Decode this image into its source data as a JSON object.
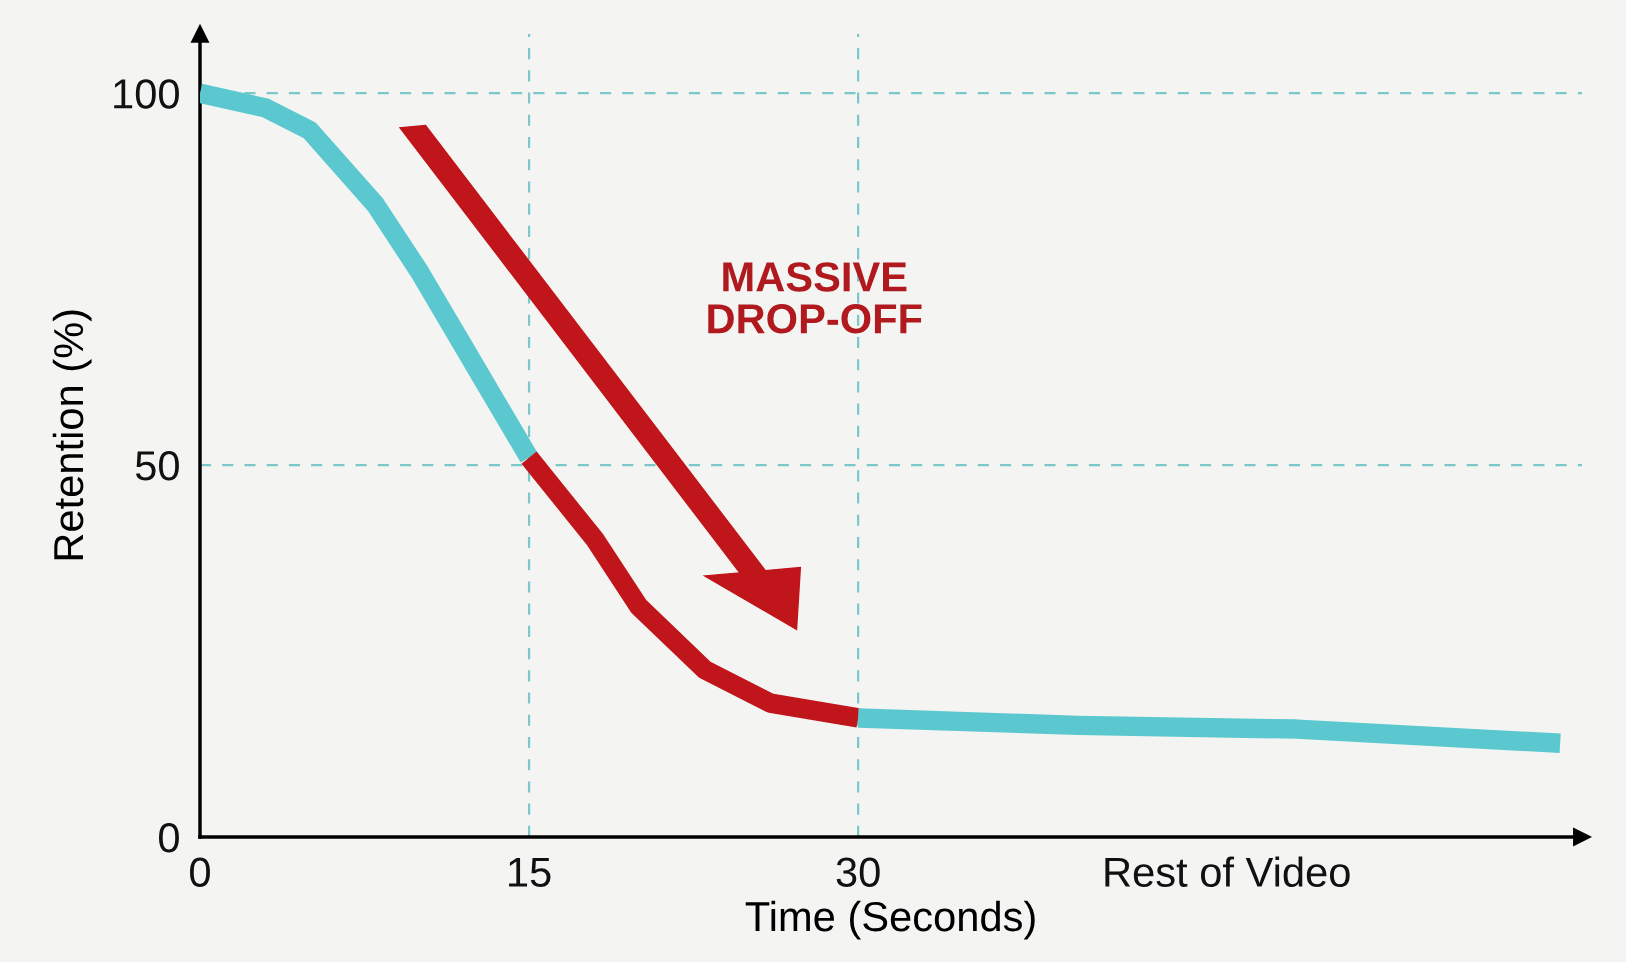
{
  "chart_data": {
    "type": "line",
    "xlabel": "Time (Seconds)",
    "ylabel": "Retention (%)",
    "series": [
      {
        "color": "#5bc8cf",
        "x": [
          0,
          3,
          5,
          8,
          10,
          12,
          15
        ],
        "values": [
          100,
          98,
          95,
          85,
          76,
          66,
          51
        ]
      },
      {
        "color": "#c0151a",
        "x": [
          15,
          18,
          20,
          23,
          26,
          30
        ],
        "values": [
          51,
          40,
          31,
          22.5,
          18,
          16
        ]
      },
      {
        "color": "#5bc8cf",
        "x": [
          30,
          40,
          50,
          62
        ],
        "values": [
          16,
          15,
          14.5,
          12.6
        ]
      }
    ],
    "xlim": [
      0,
      63
    ],
    "ylim": [
      0,
      108
    ],
    "xticks": [
      0,
      15,
      30,
      {
        "value": 46.8,
        "label": "Rest of Video"
      }
    ],
    "yticks": [
      0,
      50,
      100
    ],
    "ref_lines": [
      {
        "axis": "x",
        "value": 15,
        "color": "#7cc7c9",
        "line_style": "dashed"
      },
      {
        "axis": "x",
        "value": 30,
        "color": "#7cc7c9",
        "line_style": "dashed"
      },
      {
        "axis": "y",
        "value": 50,
        "color": "#7cc7c9",
        "line_style": "dashed"
      },
      {
        "axis": "y",
        "value": 100,
        "color": "#7cc7c9",
        "line_style": "dashed"
      }
    ],
    "annotations": [
      "MASSIVE\nDROP-OFF"
    ],
    "grid": false,
    "legend": false,
    "marker": "none",
    "line_style": "solid"
  }
}
